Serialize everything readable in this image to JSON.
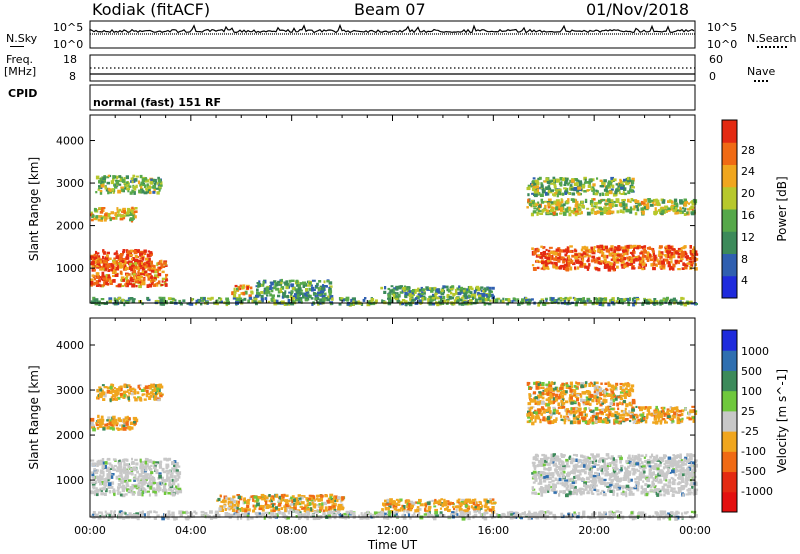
{
  "header": {
    "station": "Kodiak (fitACF)",
    "beam": "Beam 07",
    "date": "01/Nov/2018"
  },
  "noise_panel": {
    "left_label": "N.Sky",
    "right_label": "N.Search",
    "left_ticks": [
      "10^5",
      "10^0"
    ],
    "right_ticks": [
      "10^5",
      "10^0"
    ]
  },
  "freq_panel": {
    "left_label_line1": "Freq.",
    "left_label_line2": "[MHz]",
    "right_label": "Nave",
    "left_ticks": [
      "18",
      "8"
    ],
    "right_ticks": [
      "60",
      "0"
    ]
  },
  "cpid": {
    "label": "CPID",
    "text": "normal (fast) 151 RF"
  },
  "chart_data": [
    {
      "type": "heatmap",
      "name": "power",
      "xlabel": "",
      "ylabel": "Slant Range [km]",
      "yticks": [
        "1000",
        "2000",
        "3000",
        "4000"
      ],
      "ylim": [
        180,
        4600
      ],
      "colorbar_label": "Power [dB]",
      "colorbar_ticks": [
        "4",
        "8",
        "12",
        "16",
        "20",
        "24",
        "28"
      ],
      "colorbar_colors": [
        "#1f2bdc",
        "#2f5fb0",
        "#3c8a5a",
        "#56a84a",
        "#b7c82c",
        "#f0a61e",
        "#f06a14",
        "#e42a12"
      ],
      "regions": [
        {
          "x": [
            0.0,
            2.4
          ],
          "y": [
            1000,
            1450
          ],
          "level": 0.9
        },
        {
          "x": [
            0.0,
            3.0
          ],
          "y": [
            600,
            1200
          ],
          "level": 0.8
        },
        {
          "x": [
            0.2,
            2.8
          ],
          "y": [
            2800,
            3200
          ],
          "level": 0.45
        },
        {
          "x": [
            0.0,
            1.8
          ],
          "y": [
            2150,
            2450
          ],
          "level": 0.6
        },
        {
          "x": [
            5.6,
            6.4
          ],
          "y": [
            380,
            620
          ],
          "level": 0.7
        },
        {
          "x": [
            6.5,
            9.5
          ],
          "y": [
            350,
            750
          ],
          "level": 0.35
        },
        {
          "x": [
            11.5,
            16.0
          ],
          "y": [
            330,
            600
          ],
          "level": 0.4
        },
        {
          "x": [
            17.5,
            24.0
          ],
          "y": [
            1000,
            1550
          ],
          "level": 0.85
        },
        {
          "x": [
            17.3,
            24.0
          ],
          "y": [
            2300,
            2650
          ],
          "level": 0.55
        },
        {
          "x": [
            17.3,
            21.5
          ],
          "y": [
            2750,
            3150
          ],
          "level": 0.45
        },
        {
          "x": [
            0.0,
            24.0
          ],
          "y": [
            180,
            330
          ],
          "level": 0.4
        }
      ]
    },
    {
      "type": "heatmap",
      "name": "velocity",
      "xlabel": "Time UT",
      "ylabel": "Slant Range [km]",
      "xticks": [
        "00:00",
        "04:00",
        "08:00",
        "12:00",
        "16:00",
        "20:00",
        "00:00"
      ],
      "xlim": [
        0,
        24
      ],
      "yticks": [
        "1000",
        "2000",
        "3000",
        "4000"
      ],
      "ylim": [
        180,
        4600
      ],
      "colorbar_label": "Velocity [m s^-1]",
      "colorbar_ticks": [
        "1000",
        "500",
        "100",
        "25",
        "-25",
        "-100",
        "-500",
        "-1000"
      ],
      "colorbar_colors": [
        "#1f2bdc",
        "#2f6fb0",
        "#3c8a5a",
        "#6fc83c",
        "#c8c8c8",
        "#f0a61e",
        "#f06a14",
        "#e42a12",
        "#e41010"
      ],
      "regions": [
        {
          "x": [
            0.0,
            3.5
          ],
          "y": [
            700,
            1500
          ],
          "level": 0.5
        },
        {
          "x": [
            0.0,
            1.8
          ],
          "y": [
            2150,
            2450
          ],
          "level": 0.7
        },
        {
          "x": [
            0.2,
            2.8
          ],
          "y": [
            2800,
            3150
          ],
          "level": 0.7
        },
        {
          "x": [
            5.0,
            10.0
          ],
          "y": [
            330,
            700
          ],
          "level": 0.7
        },
        {
          "x": [
            11.5,
            16.0
          ],
          "y": [
            330,
            600
          ],
          "level": 0.6
        },
        {
          "x": [
            17.5,
            24.0
          ],
          "y": [
            700,
            1600
          ],
          "level": 0.5
        },
        {
          "x": [
            17.3,
            24.0
          ],
          "y": [
            2300,
            2650
          ],
          "level": 0.6
        },
        {
          "x": [
            17.3,
            21.5
          ],
          "y": [
            2700,
            3200
          ],
          "level": 0.55
        },
        {
          "x": [
            0.0,
            24.0
          ],
          "y": [
            180,
            330
          ],
          "level": 0.4
        }
      ]
    }
  ]
}
